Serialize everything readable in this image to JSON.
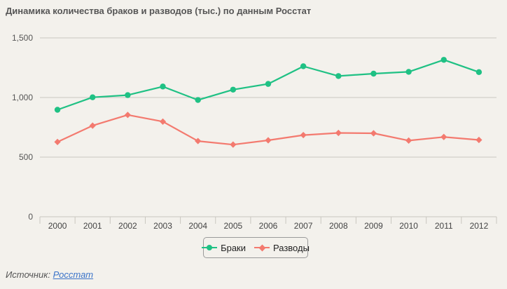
{
  "title": "Динамика количества браков и разводов (тыс.) по данным Росстат",
  "source": {
    "label": "Источник:",
    "link_text": "Росстат"
  },
  "colors": {
    "marriages": "#1fc184",
    "divorces": "#f37a6f",
    "grid": "#c9c6bf",
    "axis": "#c9c6bf"
  },
  "chart_data": {
    "type": "line",
    "title": "Динамика количества браков и разводов (тыс.) по данным Росстат",
    "xlabel": "",
    "ylabel": "",
    "categories": [
      "2000",
      "2001",
      "2002",
      "2003",
      "2004",
      "2005",
      "2006",
      "2007",
      "2008",
      "2009",
      "2010",
      "2011",
      "2012"
    ],
    "ylim": [
      0,
      1500
    ],
    "yticks": [
      0,
      500,
      1000,
      1500
    ],
    "ytick_labels": [
      "0",
      "500",
      "1,000",
      "1,500"
    ],
    "grid": true,
    "legend_position": "bottom-center",
    "series": [
      {
        "name": "Браки",
        "marker": "circle",
        "color": "#1fc184",
        "values": [
          897,
          1002,
          1020,
          1092,
          979,
          1066,
          1114,
          1262,
          1180,
          1200,
          1215,
          1316,
          1213
        ]
      },
      {
        "name": "Разводы",
        "marker": "diamond",
        "color": "#f37a6f",
        "values": [
          627,
          764,
          854,
          798,
          635,
          605,
          641,
          685,
          703,
          700,
          639,
          669,
          644
        ]
      }
    ]
  }
}
